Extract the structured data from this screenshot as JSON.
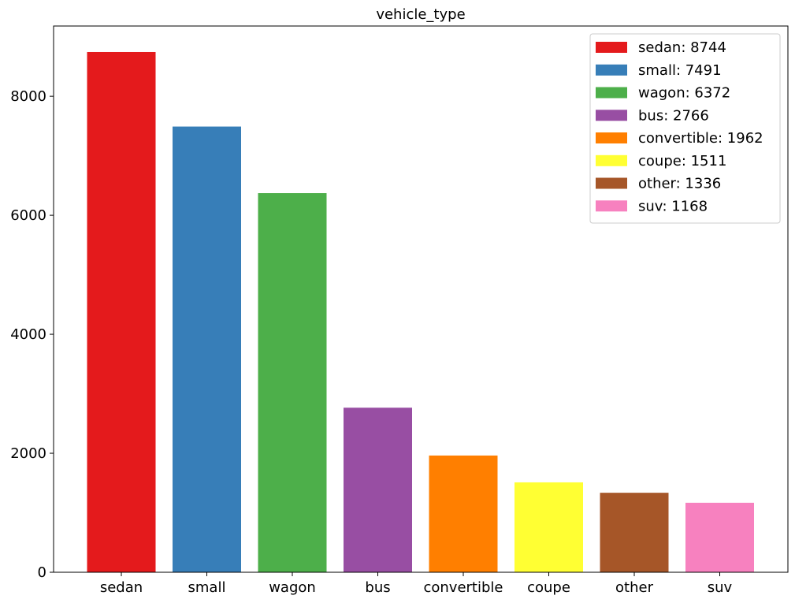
{
  "chart_data": {
    "type": "bar",
    "title": "vehicle_type",
    "xlabel": "",
    "ylabel": "",
    "categories": [
      "sedan",
      "small",
      "wagon",
      "bus",
      "convertible",
      "coupe",
      "other",
      "suv"
    ],
    "values": [
      8744,
      7491,
      6372,
      2766,
      1962,
      1511,
      1336,
      1168
    ],
    "colors": [
      "#e41a1c",
      "#377eb8",
      "#4daf4a",
      "#984ea3",
      "#ff7f00",
      "#ffff33",
      "#a65628",
      "#f781bf"
    ],
    "legend_labels": [
      "sedan: 8744",
      "small: 7491",
      "wagon: 6372",
      "bus: 2766",
      "convertible: 1962",
      "coupe: 1511",
      "other: 1336",
      "suv: 1168"
    ],
    "ylim": [
      0,
      9181
    ],
    "yticks": [
      0,
      2000,
      4000,
      6000,
      8000
    ],
    "ytick_labels": [
      "0",
      "2000",
      "4000",
      "6000",
      "8000"
    ],
    "grid": false,
    "legend_position": "top-right"
  }
}
